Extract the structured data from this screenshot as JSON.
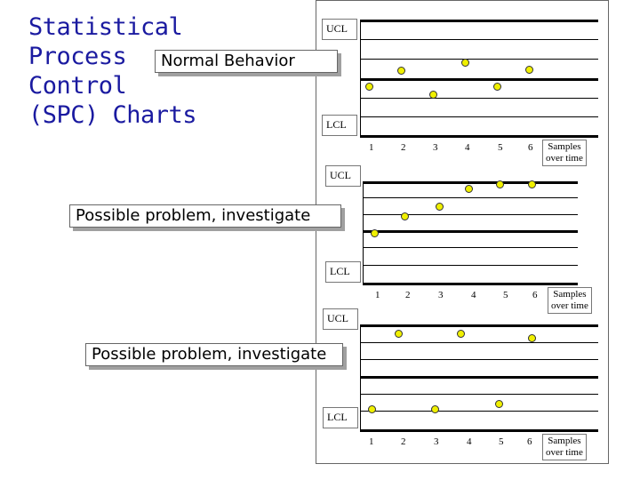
{
  "title": [
    "Statistical",
    "Process",
    "Control",
    "(SPC) Charts"
  ],
  "limit_labels": {
    "upper": "UCL",
    "lower": "LCL"
  },
  "x_title": [
    "Samples",
    "over time"
  ],
  "charts": [
    {
      "callout": "Normal Behavior",
      "x_ticks": [
        "1",
        "2",
        "3",
        "4",
        "5",
        "6"
      ]
    },
    {
      "callout": "Possible problem, investigate",
      "x_ticks": [
        "1",
        "2",
        "3",
        "4",
        "5",
        "6"
      ]
    },
    {
      "callout": "Possible problem, investigate",
      "x_ticks": [
        "1",
        "2",
        "3",
        "4",
        "5",
        "6"
      ]
    }
  ],
  "colors": {
    "title": "#1a1aa0",
    "point": "#f0f000"
  }
}
